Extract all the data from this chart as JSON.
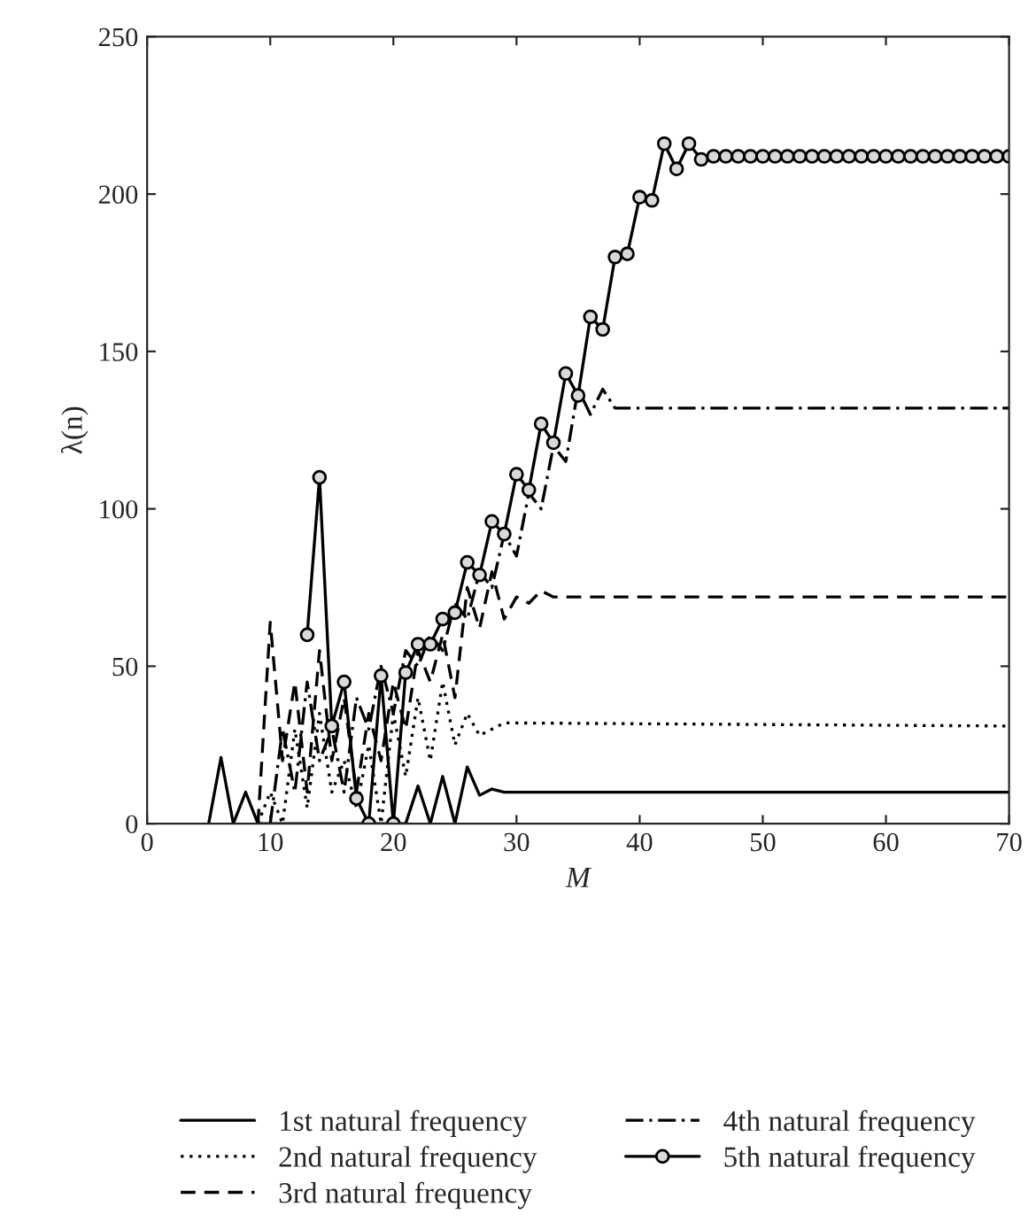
{
  "chart_data": {
    "type": "line",
    "xlabel": "M",
    "ylabel": "λ(n)",
    "xlim": [
      0,
      70
    ],
    "ylim": [
      0,
      250
    ],
    "xticks": [
      0,
      10,
      20,
      30,
      40,
      50,
      60,
      70
    ],
    "yticks": [
      0,
      50,
      100,
      150,
      200,
      250
    ],
    "grid": false,
    "legend": "bottom",
    "series": [
      {
        "name": "1st natural frequency",
        "color": "#000000",
        "line_style": "solid",
        "marker": "none",
        "x": [
          5,
          6,
          7,
          8,
          9,
          20,
          21,
          22,
          23,
          24,
          25,
          26,
          27,
          28,
          29,
          70
        ],
        "values": [
          0,
          21,
          0,
          10,
          0,
          0,
          0,
          12,
          0,
          15,
          0,
          18,
          9,
          11,
          10,
          10
        ]
      },
      {
        "name": "2nd natural frequency",
        "color": "#000000",
        "line_style": "dotted",
        "marker": "none",
        "x": [
          9,
          10,
          11,
          12,
          13,
          14,
          15,
          16,
          17,
          18,
          19,
          20,
          21,
          22,
          23,
          24,
          25,
          26,
          27,
          28,
          29,
          70
        ],
        "values": [
          0,
          10,
          0,
          30,
          5,
          35,
          10,
          20,
          5,
          25,
          0,
          35,
          15,
          40,
          20,
          45,
          25,
          35,
          28,
          30,
          32,
          31
        ]
      },
      {
        "name": "3rd natural frequency",
        "color": "#000000",
        "line_style": "dashed",
        "marker": "none",
        "x": [
          9,
          10,
          11,
          12,
          13,
          14,
          15,
          16,
          17,
          18,
          19,
          20,
          21,
          22,
          23,
          24,
          25,
          26,
          27,
          28,
          29,
          30,
          31,
          32,
          33,
          70
        ],
        "values": [
          0,
          64,
          20,
          45,
          10,
          55,
          20,
          40,
          10,
          35,
          20,
          45,
          30,
          55,
          45,
          60,
          40,
          75,
          62,
          80,
          65,
          72,
          70,
          74,
          72,
          72
        ]
      },
      {
        "name": "4th natural frequency",
        "color": "#000000",
        "line_style": "dashdot",
        "marker": "none",
        "x": [
          10,
          11,
          12,
          13,
          14,
          15,
          16,
          17,
          18,
          19,
          20,
          21,
          22,
          23,
          24,
          25,
          26,
          27,
          28,
          29,
          30,
          31,
          32,
          33,
          34,
          35,
          36,
          37,
          38,
          39,
          70
        ],
        "values": [
          0,
          30,
          10,
          45,
          20,
          30,
          10,
          40,
          30,
          50,
          35,
          55,
          50,
          60,
          55,
          70,
          65,
          80,
          75,
          92,
          85,
          105,
          100,
          120,
          115,
          138,
          130,
          138,
          132,
          132,
          132
        ]
      },
      {
        "name": "5th natural frequency",
        "color": "#000000",
        "line_style": "solid",
        "marker": "circle",
        "x": [
          13,
          14,
          15,
          16,
          17,
          18,
          19,
          20,
          21,
          22,
          23,
          24,
          25,
          26,
          27,
          28,
          29,
          30,
          31,
          32,
          33,
          34,
          35,
          36,
          37,
          38,
          39,
          40,
          41,
          42,
          43,
          44,
          45,
          46,
          47,
          48,
          49,
          50,
          51,
          52,
          53,
          54,
          55,
          56,
          57,
          58,
          59,
          60,
          61,
          62,
          63,
          64,
          65,
          66,
          67,
          68,
          69,
          70
        ],
        "values": [
          60,
          110,
          31,
          45,
          8,
          0,
          47,
          0,
          48,
          57,
          57,
          65,
          67,
          83,
          79,
          96,
          92,
          111,
          106,
          127,
          121,
          143,
          136,
          161,
          157,
          180,
          181,
          199,
          198,
          216,
          208,
          216,
          211,
          212,
          212,
          212,
          212,
          212,
          212,
          212,
          212,
          212,
          212,
          212,
          212,
          212,
          212,
          212,
          212,
          212,
          212,
          212,
          212,
          212,
          212,
          212,
          212,
          212
        ]
      }
    ]
  }
}
